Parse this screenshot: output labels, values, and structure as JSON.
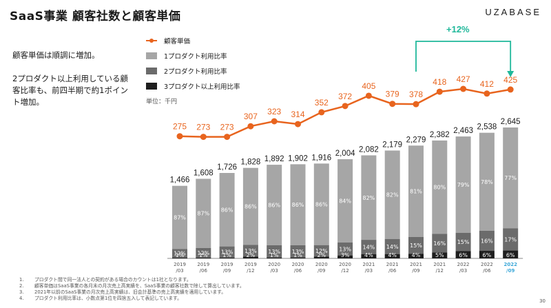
{
  "title": "SaaS事業 顧客社数と顧客単価",
  "brand": "UZABASE",
  "side_text": [
    "顧客単価は順調に増加。",
    "2プロダクト以上利用している顧客比率も、前四半期で約1ポイント増加。"
  ],
  "unit_label": "単位：千円",
  "change_label": "+12%",
  "footnotes": [
    {
      "num": "1.",
      "text": "プロダクト間で同一法人との契約がある場合のカウントは1社となります。"
    },
    {
      "num": "2.",
      "text": "顧客単価はSaaS事業の各月末の月次売上高実績を、SaaS事業の顧客社数で除して算出しています。"
    },
    {
      "num": "3.",
      "text": "2021年以前のSaaS事業の月次売上高実績は、旧会計基準の売上高実績を適用しています。"
    },
    {
      "num": "4.",
      "text": "プロダクト利用比率は、小数点第1位を四捨五入して表記しています。"
    }
  ],
  "page_number": "30",
  "colors": {
    "line": "#e8641e",
    "one_product": "#a6a6a6",
    "two_product": "#6b6b6b",
    "three_product": "#1e1e1e",
    "accent": "#1fb89a",
    "highlight_label": "#3aa7d8"
  },
  "chart_data": {
    "type": "bar",
    "categories": [
      "2019/03",
      "2019/06",
      "2019/09",
      "2019/12",
      "2020/03",
      "2020/06",
      "2020/09",
      "2020/12",
      "2021/03",
      "2021/06",
      "2021/09",
      "2021/12",
      "2022/03",
      "2022/06",
      "2022/09"
    ],
    "category_lines": [
      [
        "2019",
        "/03"
      ],
      [
        "2019",
        "/06"
      ],
      [
        "2019",
        "/09"
      ],
      [
        "2019",
        "/12"
      ],
      [
        "2020",
        "/03"
      ],
      [
        "2020",
        "/06"
      ],
      [
        "2020",
        "/09"
      ],
      [
        "2020",
        "/12"
      ],
      [
        "2021",
        "/03"
      ],
      [
        "2021",
        "/06"
      ],
      [
        "2021",
        "/09"
      ],
      [
        "2021",
        "/12"
      ],
      [
        "2022",
        "/03"
      ],
      [
        "2022",
        "/06"
      ],
      [
        "2022",
        "/09"
      ]
    ],
    "highlight_category": "2022/09",
    "customers": {
      "name": "顧客社数",
      "values": [
        1466,
        1608,
        1726,
        1828,
        1892,
        1902,
        1916,
        2004,
        2082,
        2179,
        2279,
        2382,
        2463,
        2538,
        2645
      ],
      "labels": [
        "1,466",
        "1,608",
        "1,726",
        "1,828",
        "1,892",
        "1,902",
        "1,916",
        "2,004",
        "2,082",
        "2,179",
        "2,279",
        "2,382",
        "2,463",
        "2,538",
        "2,645"
      ]
    },
    "series": [
      {
        "name": "1プロダクト利用比率",
        "values": [
          87,
          87,
          86,
          86,
          86,
          86,
          86,
          84,
          82,
          82,
          81,
          80,
          79,
          78,
          77
        ]
      },
      {
        "name": "2プロダクト利用比率",
        "values": [
          12,
          12,
          13,
          13,
          13,
          13,
          12,
          13,
          14,
          14,
          15,
          16,
          15,
          16,
          17
        ]
      },
      {
        "name": "3プロダクト以上利用比率",
        "values": [
          1,
          1,
          1,
          2,
          1,
          1,
          2,
          3,
          4,
          4,
          4,
          5,
          6,
          6,
          6
        ]
      }
    ],
    "line": {
      "name": "顧客単価",
      "values": [
        275,
        273,
        273,
        307,
        323,
        314,
        352,
        372,
        405,
        379,
        378,
        418,
        427,
        412,
        425
      ]
    }
  }
}
